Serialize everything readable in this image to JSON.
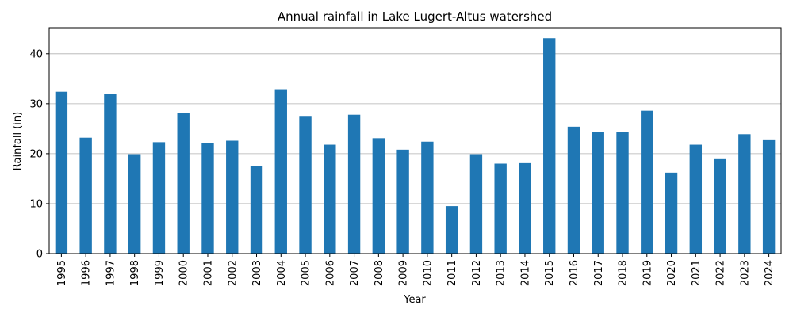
{
  "colors": {
    "bar": "#1f77b4",
    "grid": "#b0b0b0",
    "axis": "#000000"
  },
  "chart_data": {
    "type": "bar",
    "title": "Annual rainfall in Lake Lugert-Altus watershed",
    "xlabel": "Year",
    "ylabel": "Rainfall (in)",
    "ylim": [
      0,
      45.2
    ],
    "yticks": [
      0,
      10,
      20,
      30,
      40
    ],
    "grid": "horizontal",
    "categories": [
      "1995",
      "1996",
      "1997",
      "1998",
      "1999",
      "2000",
      "2001",
      "2002",
      "2003",
      "2004",
      "2005",
      "2006",
      "2007",
      "2008",
      "2009",
      "2010",
      "2011",
      "2012",
      "2013",
      "2014",
      "2015",
      "2016",
      "2017",
      "2018",
      "2019",
      "2020",
      "2021",
      "2022",
      "2023",
      "2024"
    ],
    "values": [
      32.4,
      23.2,
      31.9,
      19.9,
      22.3,
      28.1,
      22.1,
      22.6,
      17.5,
      32.9,
      27.4,
      21.8,
      27.8,
      23.1,
      20.8,
      22.4,
      9.5,
      19.9,
      18.0,
      18.1,
      43.1,
      25.4,
      24.3,
      24.3,
      28.6,
      16.2,
      21.8,
      18.9,
      23.9,
      22.7
    ]
  }
}
